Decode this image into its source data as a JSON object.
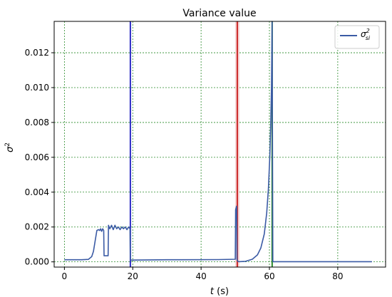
{
  "chart_data": {
    "type": "line",
    "title": "Variance value",
    "xlabel_var": "t",
    "xlabel_unit": " (s)",
    "ylabel_base": "σ",
    "ylabel_exp": "2",
    "xlim": [
      -3,
      94
    ],
    "ylim": [
      -0.0003,
      0.0138
    ],
    "xticks": [
      0,
      20,
      40,
      60,
      80
    ],
    "xtick_labels": [
      "0",
      "20",
      "40",
      "60",
      "80"
    ],
    "yticks": [
      0,
      0.002,
      0.004,
      0.006,
      0.008,
      0.01,
      0.012
    ],
    "ytick_labels": [
      "0.000",
      "0.002",
      "0.004",
      "0.006",
      "0.008",
      "0.010",
      "0.012"
    ],
    "grid": true,
    "legend_position": "top-right",
    "series": [
      {
        "name_base": "σ",
        "name_sup": "2",
        "name_sub": "si",
        "color": "#3b5ba5",
        "x": [
          0,
          5,
          7,
          8,
          8.5,
          9,
          9.5,
          10,
          10.3,
          10.6,
          10.9,
          11.2,
          11.5,
          11.6,
          12,
          12.8,
          12.9,
          13.3,
          13.8,
          14.3,
          14.8,
          15.3,
          15.8,
          16.3,
          16.8,
          17.3,
          17.8,
          18.3,
          18.8,
          19.2,
          19.3,
          30,
          45,
          50,
          50.1,
          50.4,
          50.5,
          50.8,
          51,
          53,
          55,
          56.5,
          57.5,
          58.5,
          59.2,
          59.7,
          60.1,
          60.4,
          60.6,
          60.8,
          61,
          75,
          90
        ],
        "y": [
          0.00012,
          0.00012,
          0.00014,
          0.0003,
          0.0006,
          0.0012,
          0.0018,
          0.00185,
          0.0018,
          0.0019,
          0.00175,
          0.0019,
          0.0018,
          0.00035,
          0.00035,
          0.00035,
          0.0021,
          0.0019,
          0.0021,
          0.00185,
          0.0021,
          0.0019,
          0.002,
          0.00185,
          0.002,
          0.0019,
          0.002,
          0.00185,
          0.002,
          0.0019,
          0.0001,
          0.00012,
          0.00013,
          0.00015,
          0.003,
          0.0032,
          0.00015,
          2e-05,
          1e-05,
          3e-05,
          0.00015,
          0.0004,
          0.0008,
          0.0016,
          0.0028,
          0.0042,
          0.006,
          0.008,
          0.01,
          0.0138,
          1e-05,
          1e-05,
          1e-05
        ]
      }
    ],
    "vlines": [
      {
        "x": 19.3,
        "color": "#2b2bc4"
      },
      {
        "x": 50.6,
        "color": "#cc2a2a",
        "highlight": "#f3c9c9"
      },
      {
        "x": 60.8,
        "color": "#2a8a2a"
      }
    ]
  }
}
